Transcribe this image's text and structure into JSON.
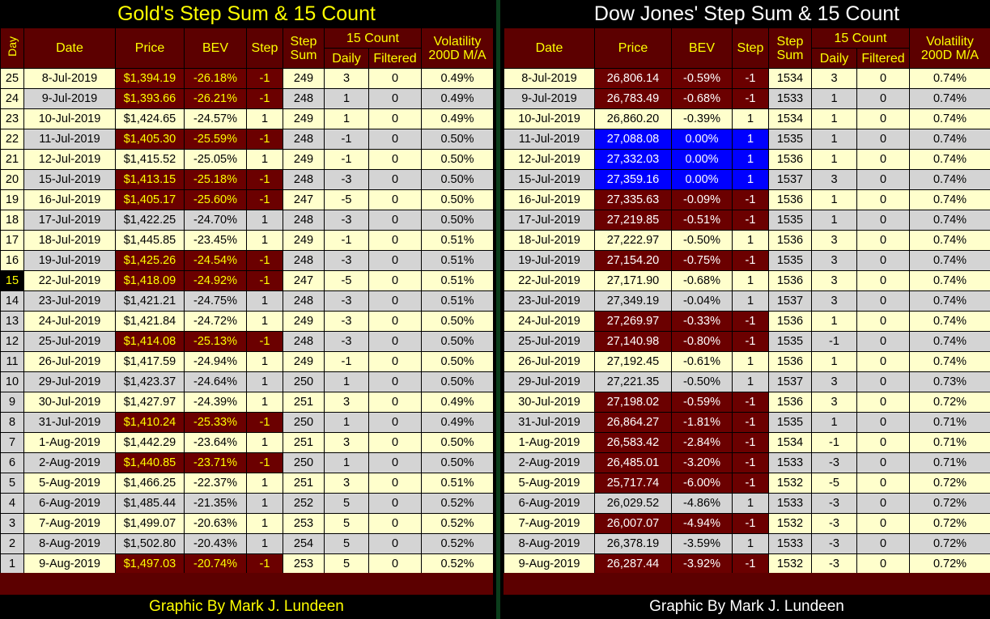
{
  "gold": {
    "title": "Gold's Step Sum & 15 Count",
    "footer": "Graphic By Mark J. Lundeen",
    "headers": {
      "day": "Day",
      "date": "Date",
      "price": "Price",
      "bev": "BEV",
      "step": "Step",
      "step_sum": "Step Sum",
      "count15": "15 Count",
      "daily": "Daily",
      "filtered": "Filtered",
      "volatility": "Volatility 200D M/A"
    },
    "rows": [
      {
        "day": "25",
        "date": "8-Jul-2019",
        "price": "$1,394.19",
        "bev": "-26.18%",
        "step": "-1",
        "sum": "249",
        "daily": "3",
        "filtered": "0",
        "vol": "0.49%"
      },
      {
        "day": "24",
        "date": "9-Jul-2019",
        "price": "$1,393.66",
        "bev": "-26.21%",
        "step": "-1",
        "sum": "248",
        "daily": "1",
        "filtered": "0",
        "vol": "0.49%"
      },
      {
        "day": "23",
        "date": "10-Jul-2019",
        "price": "$1,424.65",
        "bev": "-24.57%",
        "step": "1",
        "sum": "249",
        "daily": "1",
        "filtered": "0",
        "vol": "0.49%"
      },
      {
        "day": "22",
        "date": "11-Jul-2019",
        "price": "$1,405.30",
        "bev": "-25.59%",
        "step": "-1",
        "sum": "248",
        "daily": "-1",
        "filtered": "0",
        "vol": "0.50%"
      },
      {
        "day": "21",
        "date": "12-Jul-2019",
        "price": "$1,415.52",
        "bev": "-25.05%",
        "step": "1",
        "sum": "249",
        "daily": "-1",
        "filtered": "0",
        "vol": "0.50%"
      },
      {
        "day": "20",
        "date": "15-Jul-2019",
        "price": "$1,413.15",
        "bev": "-25.18%",
        "step": "-1",
        "sum": "248",
        "daily": "-3",
        "filtered": "0",
        "vol": "0.50%"
      },
      {
        "day": "19",
        "date": "16-Jul-2019",
        "price": "$1,405.17",
        "bev": "-25.60%",
        "step": "-1",
        "sum": "247",
        "daily": "-5",
        "filtered": "0",
        "vol": "0.50%"
      },
      {
        "day": "18",
        "date": "17-Jul-2019",
        "price": "$1,422.25",
        "bev": "-24.70%",
        "step": "1",
        "sum": "248",
        "daily": "-3",
        "filtered": "0",
        "vol": "0.50%"
      },
      {
        "day": "17",
        "date": "18-Jul-2019",
        "price": "$1,445.85",
        "bev": "-23.45%",
        "step": "1",
        "sum": "249",
        "daily": "-1",
        "filtered": "0",
        "vol": "0.51%"
      },
      {
        "day": "16",
        "date": "19-Jul-2019",
        "price": "$1,425.26",
        "bev": "-24.54%",
        "step": "-1",
        "sum": "248",
        "daily": "-3",
        "filtered": "0",
        "vol": "0.51%"
      },
      {
        "day": "15",
        "date": "22-Jul-2019",
        "price": "$1,418.09",
        "bev": "-24.92%",
        "step": "-1",
        "sum": "247",
        "daily": "-5",
        "filtered": "0",
        "vol": "0.51%"
      },
      {
        "day": "14",
        "date": "23-Jul-2019",
        "price": "$1,421.21",
        "bev": "-24.75%",
        "step": "1",
        "sum": "248",
        "daily": "-3",
        "filtered": "0",
        "vol": "0.51%"
      },
      {
        "day": "13",
        "date": "24-Jul-2019",
        "price": "$1,421.84",
        "bev": "-24.72%",
        "step": "1",
        "sum": "249",
        "daily": "-3",
        "filtered": "0",
        "vol": "0.50%"
      },
      {
        "day": "12",
        "date": "25-Jul-2019",
        "price": "$1,414.08",
        "bev": "-25.13%",
        "step": "-1",
        "sum": "248",
        "daily": "-3",
        "filtered": "0",
        "vol": "0.50%"
      },
      {
        "day": "11",
        "date": "26-Jul-2019",
        "price": "$1,417.59",
        "bev": "-24.94%",
        "step": "1",
        "sum": "249",
        "daily": "-1",
        "filtered": "0",
        "vol": "0.50%"
      },
      {
        "day": "10",
        "date": "29-Jul-2019",
        "price": "$1,423.37",
        "bev": "-24.64%",
        "step": "1",
        "sum": "250",
        "daily": "1",
        "filtered": "0",
        "vol": "0.50%"
      },
      {
        "day": "9",
        "date": "30-Jul-2019",
        "price": "$1,427.97",
        "bev": "-24.39%",
        "step": "1",
        "sum": "251",
        "daily": "3",
        "filtered": "0",
        "vol": "0.49%"
      },
      {
        "day": "8",
        "date": "31-Jul-2019",
        "price": "$1,410.24",
        "bev": "-25.33%",
        "step": "-1",
        "sum": "250",
        "daily": "1",
        "filtered": "0",
        "vol": "0.49%"
      },
      {
        "day": "7",
        "date": "1-Aug-2019",
        "price": "$1,442.29",
        "bev": "-23.64%",
        "step": "1",
        "sum": "251",
        "daily": "3",
        "filtered": "0",
        "vol": "0.50%"
      },
      {
        "day": "6",
        "date": "2-Aug-2019",
        "price": "$1,440.85",
        "bev": "-23.71%",
        "step": "-1",
        "sum": "250",
        "daily": "1",
        "filtered": "0",
        "vol": "0.50%"
      },
      {
        "day": "5",
        "date": "5-Aug-2019",
        "price": "$1,466.25",
        "bev": "-22.37%",
        "step": "1",
        "sum": "251",
        "daily": "3",
        "filtered": "0",
        "vol": "0.51%"
      },
      {
        "day": "4",
        "date": "6-Aug-2019",
        "price": "$1,485.44",
        "bev": "-21.35%",
        "step": "1",
        "sum": "252",
        "daily": "5",
        "filtered": "0",
        "vol": "0.52%"
      },
      {
        "day": "3",
        "date": "7-Aug-2019",
        "price": "$1,499.07",
        "bev": "-20.63%",
        "step": "1",
        "sum": "253",
        "daily": "5",
        "filtered": "0",
        "vol": "0.52%"
      },
      {
        "day": "2",
        "date": "8-Aug-2019",
        "price": "$1,502.80",
        "bev": "-20.43%",
        "step": "1",
        "sum": "254",
        "daily": "5",
        "filtered": "0",
        "vol": "0.52%"
      },
      {
        "day": "1",
        "date": "9-Aug-2019",
        "price": "$1,497.03",
        "bev": "-20.74%",
        "step": "-1",
        "sum": "253",
        "daily": "5",
        "filtered": "0",
        "vol": "0.52%"
      }
    ]
  },
  "dow": {
    "title": "Dow Jones' Step Sum & 15 Count",
    "footer": "Graphic By Mark J. Lundeen",
    "headers": {
      "date": "Date",
      "price": "Price",
      "bev": "BEV",
      "step": "Step",
      "step_sum": "Step Sum",
      "count15": "15 Count",
      "daily": "Daily",
      "filtered": "Filtered",
      "volatility": "Volatility 200D M/A"
    },
    "rows": [
      {
        "date": "8-Jul-2019",
        "price": "26,806.14",
        "bev": "-0.59%",
        "step": "-1",
        "sum": "1534",
        "daily": "3",
        "filtered": "0",
        "vol": "0.74%"
      },
      {
        "date": "9-Jul-2019",
        "price": "26,783.49",
        "bev": "-0.68%",
        "step": "-1",
        "sum": "1533",
        "daily": "1",
        "filtered": "0",
        "vol": "0.74%"
      },
      {
        "date": "10-Jul-2019",
        "price": "26,860.20",
        "bev": "-0.39%",
        "step": "1",
        "sum": "1534",
        "daily": "1",
        "filtered": "0",
        "vol": "0.74%"
      },
      {
        "date": "11-Jul-2019",
        "price": "27,088.08",
        "bev": "0.00%",
        "step": "1",
        "sum": "1535",
        "daily": "1",
        "filtered": "0",
        "vol": "0.74%"
      },
      {
        "date": "12-Jul-2019",
        "price": "27,332.03",
        "bev": "0.00%",
        "step": "1",
        "sum": "1536",
        "daily": "1",
        "filtered": "0",
        "vol": "0.74%"
      },
      {
        "date": "15-Jul-2019",
        "price": "27,359.16",
        "bev": "0.00%",
        "step": "1",
        "sum": "1537",
        "daily": "3",
        "filtered": "0",
        "vol": "0.74%"
      },
      {
        "date": "16-Jul-2019",
        "price": "27,335.63",
        "bev": "-0.09%",
        "step": "-1",
        "sum": "1536",
        "daily": "1",
        "filtered": "0",
        "vol": "0.74%"
      },
      {
        "date": "17-Jul-2019",
        "price": "27,219.85",
        "bev": "-0.51%",
        "step": "-1",
        "sum": "1535",
        "daily": "1",
        "filtered": "0",
        "vol": "0.74%"
      },
      {
        "date": "18-Jul-2019",
        "price": "27,222.97",
        "bev": "-0.50%",
        "step": "1",
        "sum": "1536",
        "daily": "3",
        "filtered": "0",
        "vol": "0.74%"
      },
      {
        "date": "19-Jul-2019",
        "price": "27,154.20",
        "bev": "-0.75%",
        "step": "-1",
        "sum": "1535",
        "daily": "3",
        "filtered": "0",
        "vol": "0.74%"
      },
      {
        "date": "22-Jul-2019",
        "price": "27,171.90",
        "bev": "-0.68%",
        "step": "1",
        "sum": "1536",
        "daily": "3",
        "filtered": "0",
        "vol": "0.74%"
      },
      {
        "date": "23-Jul-2019",
        "price": "27,349.19",
        "bev": "-0.04%",
        "step": "1",
        "sum": "1537",
        "daily": "3",
        "filtered": "0",
        "vol": "0.74%"
      },
      {
        "date": "24-Jul-2019",
        "price": "27,269.97",
        "bev": "-0.33%",
        "step": "-1",
        "sum": "1536",
        "daily": "1",
        "filtered": "0",
        "vol": "0.74%"
      },
      {
        "date": "25-Jul-2019",
        "price": "27,140.98",
        "bev": "-0.80%",
        "step": "-1",
        "sum": "1535",
        "daily": "-1",
        "filtered": "0",
        "vol": "0.74%"
      },
      {
        "date": "26-Jul-2019",
        "price": "27,192.45",
        "bev": "-0.61%",
        "step": "1",
        "sum": "1536",
        "daily": "1",
        "filtered": "0",
        "vol": "0.74%"
      },
      {
        "date": "29-Jul-2019",
        "price": "27,221.35",
        "bev": "-0.50%",
        "step": "1",
        "sum": "1537",
        "daily": "3",
        "filtered": "0",
        "vol": "0.73%"
      },
      {
        "date": "30-Jul-2019",
        "price": "27,198.02",
        "bev": "-0.59%",
        "step": "-1",
        "sum": "1536",
        "daily": "3",
        "filtered": "0",
        "vol": "0.72%"
      },
      {
        "date": "31-Jul-2019",
        "price": "26,864.27",
        "bev": "-1.81%",
        "step": "-1",
        "sum": "1535",
        "daily": "1",
        "filtered": "0",
        "vol": "0.71%"
      },
      {
        "date": "1-Aug-2019",
        "price": "26,583.42",
        "bev": "-2.84%",
        "step": "-1",
        "sum": "1534",
        "daily": "-1",
        "filtered": "0",
        "vol": "0.71%"
      },
      {
        "date": "2-Aug-2019",
        "price": "26,485.01",
        "bev": "-3.20%",
        "step": "-1",
        "sum": "1533",
        "daily": "-3",
        "filtered": "0",
        "vol": "0.71%"
      },
      {
        "date": "5-Aug-2019",
        "price": "25,717.74",
        "bev": "-6.00%",
        "step": "-1",
        "sum": "1532",
        "daily": "-5",
        "filtered": "0",
        "vol": "0.72%"
      },
      {
        "date": "6-Aug-2019",
        "price": "26,029.52",
        "bev": "-4.86%",
        "step": "1",
        "sum": "1533",
        "daily": "-3",
        "filtered": "0",
        "vol": "0.72%"
      },
      {
        "date": "7-Aug-2019",
        "price": "26,007.07",
        "bev": "-4.94%",
        "step": "-1",
        "sum": "1532",
        "daily": "-3",
        "filtered": "0",
        "vol": "0.72%"
      },
      {
        "date": "8-Aug-2019",
        "price": "26,378.19",
        "bev": "-3.59%",
        "step": "1",
        "sum": "1533",
        "daily": "-3",
        "filtered": "0",
        "vol": "0.72%"
      },
      {
        "date": "9-Aug-2019",
        "price": "26,287.44",
        "bev": "-3.92%",
        "step": "-1",
        "sum": "1532",
        "daily": "-3",
        "filtered": "0",
        "vol": "0.72%"
      }
    ]
  },
  "colors": {
    "header_bg": "#5c0000",
    "down_cell": "#6b0000",
    "new_high_cell": "#0000ff",
    "row_light": "#ffffcc",
    "row_gray": "#d4d4d4",
    "gold_text": "#ffff00"
  }
}
